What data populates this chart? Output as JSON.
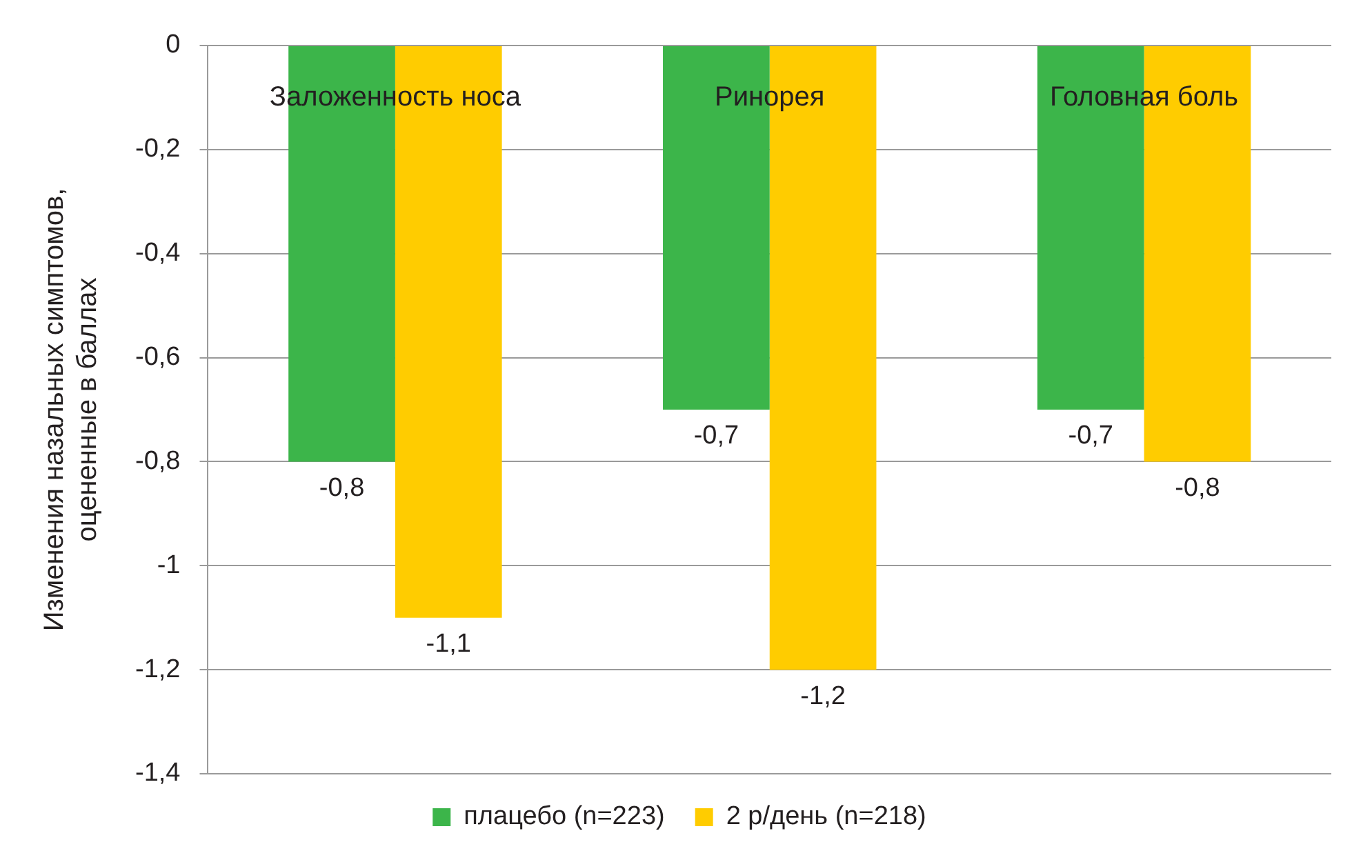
{
  "chart_data": {
    "type": "bar",
    "ylabel": "Изменения назальных симптомов,\nоцененные в баллах",
    "categories": [
      "Заложенность носа",
      "Ринорея",
      "Головная боль"
    ],
    "series": [
      {
        "name": "плацебо (n=223)",
        "color": "#3cb54a",
        "values": [
          -0.8,
          -0.7,
          -0.7
        ],
        "value_labels": [
          "-0,8",
          "-0,7",
          "-0,7"
        ]
      },
      {
        "name": "2 р/день (n=218)",
        "color": "#ffcc00",
        "values": [
          -1.1,
          -1.2,
          -0.8
        ],
        "value_labels": [
          "-1,1",
          "-1,2",
          "-0,8"
        ]
      }
    ],
    "ylim": [
      -1.4,
      0
    ],
    "yticks": [
      {
        "value": 0,
        "label": "0"
      },
      {
        "value": -0.2,
        "label": "-0,2"
      },
      {
        "value": -0.4,
        "label": "-0,4"
      },
      {
        "value": -0.6,
        "label": "-0,6"
      },
      {
        "value": -0.8,
        "label": "-0,8"
      },
      {
        "value": -1,
        "label": "-1"
      },
      {
        "value": -1.2,
        "label": "-1,2"
      },
      {
        "value": -1.4,
        "label": "-1,4"
      }
    ],
    "grid": "y",
    "legend": "bottom"
  }
}
